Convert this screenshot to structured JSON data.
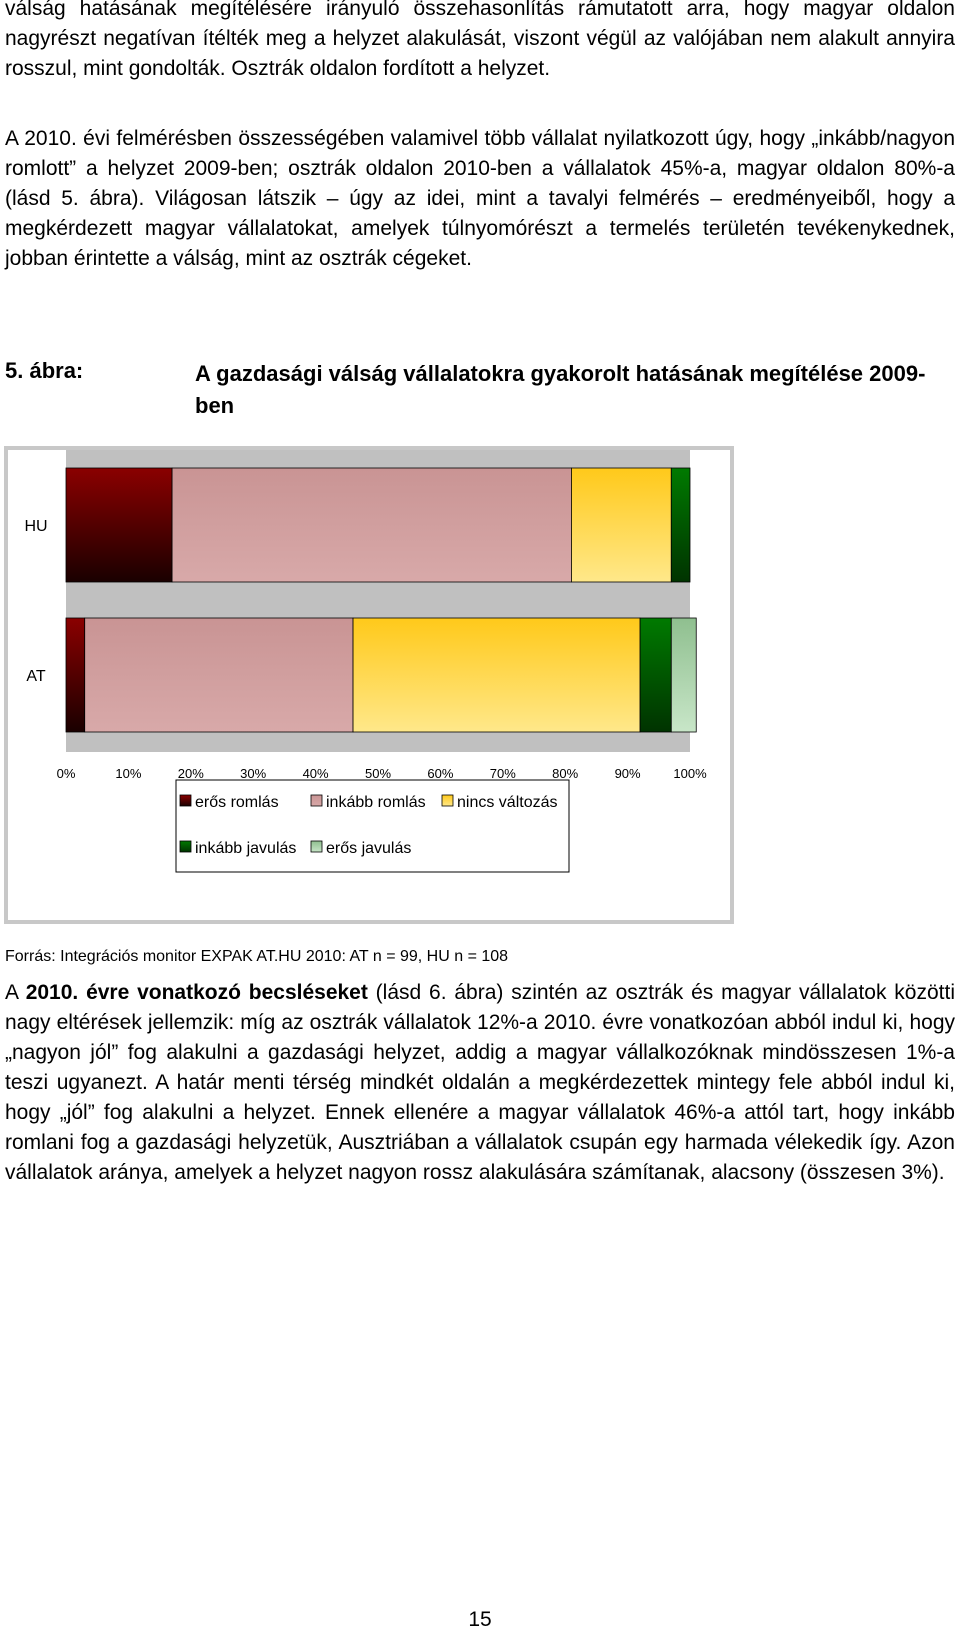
{
  "intro_text": "válság hatásának megítélésére irányuló összehasonlítás rámutatott arra, hogy magyar oldalon nagyrészt negatívan ítélték meg a helyzet alakulását, viszont végül az valójában nem alakult annyira rosszul, mint gondolták. Osztrák oldalon fordított a helyzet.",
  "paragraph2": "A 2010. évi felmérésben összességében valamivel több vállalat nyilatkozott úgy, hogy „inkább/nagyon romlott” a helyzet 2009-ben; osztrák oldalon 2010-ben a vállalatok 45%-a, magyar oldalon 80%-a (lásd 5. ábra). Világosan látszik – úgy az idei, mint a tavalyi felmérés – eredményeiből, hogy a megkérdezett magyar vállalatokat, amelyek túlnyomórészt a termelés területén tevékenykednek, jobban érintette a válság, mint az osztrák cégeket.",
  "figure": {
    "number": "5. ábra:",
    "title": "A gazdasági válság vállalatokra gyakorolt hatásának megítélése 2009-ben"
  },
  "chart_data": {
    "type": "bar",
    "orientation": "horizontal",
    "stacked": "100%",
    "categories": [
      "HU",
      "AT"
    ],
    "series": [
      {
        "name": "erős romlás",
        "color": "#7a0000",
        "values": [
          17,
          3
        ]
      },
      {
        "name": "inkább romlás",
        "color": "#cc9999",
        "values": [
          64,
          43
        ]
      },
      {
        "name": "nincs változás",
        "color": "#ffcc33",
        "values": [
          16,
          46
        ]
      },
      {
        "name": "inkább javulás",
        "color": "#006600",
        "values": [
          3,
          5
        ]
      },
      {
        "name": "erős javulás",
        "color": "#99cc99",
        "values": [
          0,
          4
        ]
      }
    ],
    "x_ticks": [
      "0%",
      "10%",
      "20%",
      "30%",
      "40%",
      "50%",
      "60%",
      "70%",
      "80%",
      "90%",
      "100%"
    ],
    "xlim": [
      0,
      100
    ],
    "legend_position": "bottom",
    "plot_background": "#c0c0c0"
  },
  "source": "Forrás: Integrációs monitor EXPAK AT.HU 2010: AT n = 99, HU n = 108",
  "paragraph3": {
    "lead": "A ",
    "bold": "2010. évre vonatkozó becsléseket",
    "rest": " (lásd 6. ábra) szintén az osztrák és magyar vállalatok közötti nagy eltérések jellemzik: míg az osztrák vállalatok 12%-a 2010. évre vonatkozóan abból indul ki, hogy „nagyon jól” fog alakulni a gazdasági helyzet, addig a magyar vállalkozóknak mindösszesen 1%-a teszi ugyanezt. A határ menti térség mindkét oldalán a megkérdezettek mintegy fele abból indul ki, hogy „jól” fog alakulni a helyzet. Ennek ellenére a magyar vállalatok 46%-a attól tart, hogy inkább romlani fog a gazdasági helyzetük, Ausztriában a vállalatok csupán egy harmada vélekedik így. Azon vállalatok aránya, amelyek a helyzet nagyon rossz alakulására számítanak, alacsony (összesen 3%)."
  },
  "page_number": "15"
}
